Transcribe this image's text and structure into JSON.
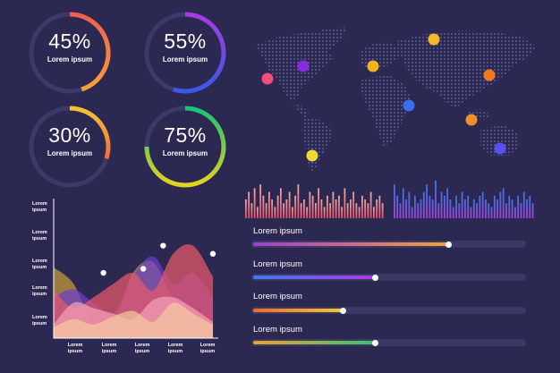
{
  "gauges": [
    {
      "value": 45,
      "label": "45%",
      "sublabel": "Lorem ipsum",
      "color_start": "#f0604c",
      "color_end": "#f7a035"
    },
    {
      "value": 55,
      "label": "55%",
      "sublabel": "Lorem ipsum",
      "color_start": "#a63be3",
      "color_end": "#3d57e8"
    },
    {
      "value": 30,
      "label": "30%",
      "sublabel": "Lorem ipsum",
      "color_start": "#f4c335",
      "color_end": "#f06a3c"
    },
    {
      "value": 75,
      "label": "75%",
      "sublabel": "Lorem ipsum",
      "color_start": "#18c47a",
      "color_end": "#e6d21e"
    }
  ],
  "map": {
    "markers": [
      {
        "color": "#f04e7a"
      },
      {
        "color": "#8a2be2"
      },
      {
        "color": "#f0b41c"
      },
      {
        "color": "#f5b928"
      },
      {
        "color": "#f07a1c"
      },
      {
        "color": "#3a6df0"
      },
      {
        "color": "#f08e28"
      },
      {
        "color": "#5a4ef0"
      },
      {
        "color": "#f0d830"
      }
    ]
  },
  "equalizers": [
    {
      "name": "warm",
      "color_bottom": "#e84b63",
      "color_top": "#f2a8a0",
      "heights": [
        0.5,
        0.7,
        0.4,
        0.8,
        0.3,
        0.9,
        0.6,
        0.4,
        0.7,
        0.5,
        0.3,
        0.6,
        0.8,
        0.4,
        0.5,
        0.7,
        0.3,
        0.6,
        0.9,
        0.4,
        0.5,
        0.3,
        0.7,
        0.6,
        0.4,
        0.8,
        0.5,
        0.3,
        0.6,
        0.4,
        0.7,
        0.5,
        0.6,
        0.3,
        0.8,
        0.4,
        0.5,
        0.7,
        0.4,
        0.3,
        0.6,
        0.5,
        0.4,
        0.7,
        0.3,
        0.5,
        0.6,
        0.4
      ]
    },
    {
      "name": "cool",
      "color_bottom": "#a73fd6",
      "color_top": "#3f74e8",
      "heights": [
        0.9,
        0.6,
        0.4,
        0.8,
        0.5,
        0.7,
        0.3,
        0.6,
        0.4,
        0.5,
        0.7,
        0.9,
        0.6,
        0.5,
        1.0,
        0.4,
        0.7,
        0.6,
        0.8,
        0.5,
        0.3,
        0.6,
        0.4,
        0.7,
        0.5,
        0.6,
        0.3,
        0.5,
        0.4,
        0.6,
        0.7,
        0.5,
        0.4,
        0.3,
        0.6,
        0.5,
        0.7,
        0.8,
        0.4,
        0.6,
        0.5,
        0.3,
        0.6,
        0.4,
        0.7,
        0.5,
        0.6,
        0.4
      ]
    }
  ],
  "progress": [
    {
      "label": "Lorem ipsum",
      "value": 0.72,
      "color_start": "#a23ad6",
      "color_end": "#f5a033"
    },
    {
      "label": "Lorem ipsum",
      "value": 0.45,
      "color_start": "#3a7cf0",
      "color_end": "#b13ae6"
    },
    {
      "label": "Lorem ipsum",
      "value": 0.33,
      "color_start": "#f06a28",
      "color_end": "#f5c930"
    },
    {
      "label": "Lorem ipsum",
      "value": 0.45,
      "color_start": "#f5a02a",
      "color_end": "#2ec86c"
    }
  ],
  "chart_data": {
    "type": "area",
    "title": "",
    "y_tick_labels": [
      "Lorem ipsum",
      "Lorem ipsum",
      "Lorem ipsum",
      "Lorem ipsum",
      "Lorem ipsum",
      "Lorem ipsum"
    ],
    "x_tick_labels": [
      "Lorem ipsum",
      "Lorem ipsum",
      "Lorem ipsum",
      "Lorem ipsum",
      "Lorem ipsum"
    ],
    "x": [
      0,
      1,
      2,
      3,
      4,
      5,
      6,
      7,
      8
    ],
    "ylim": [
      0,
      100
    ],
    "series": [
      {
        "name": "gold",
        "color": "#c79a3a",
        "values": [
          52,
          40,
          10,
          12,
          48,
          56,
          30,
          22,
          8
        ]
      },
      {
        "name": "purple",
        "color": "#6b3fc8",
        "values": [
          30,
          36,
          26,
          18,
          46,
          60,
          40,
          48,
          30
        ]
      },
      {
        "name": "red",
        "color": "#e85a6a",
        "values": [
          35,
          22,
          30,
          40,
          48,
          35,
          62,
          68,
          45
        ]
      },
      {
        "name": "pink",
        "color": "#f4a0b8",
        "values": [
          10,
          26,
          22,
          18,
          14,
          28,
          30,
          22,
          12
        ]
      },
      {
        "name": "peach",
        "color": "#f5c8a0",
        "values": [
          8,
          14,
          10,
          16,
          20,
          12,
          26,
          18,
          10
        ]
      }
    ],
    "points": [
      {
        "series": "marker",
        "x": 2.5,
        "y": 48
      },
      {
        "series": "marker",
        "x": 4.5,
        "y": 51
      },
      {
        "series": "marker",
        "x": 5.5,
        "y": 68
      },
      {
        "series": "marker",
        "x": 8,
        "y": 62
      }
    ]
  }
}
